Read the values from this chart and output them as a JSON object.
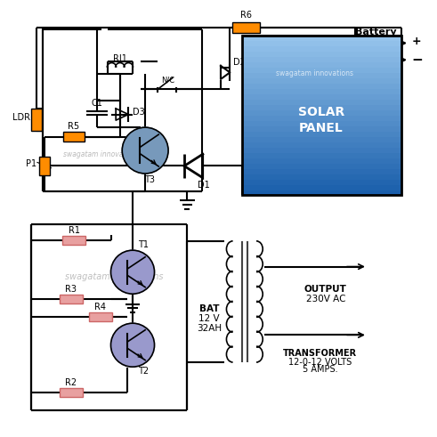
{
  "bg_color": "#ffffff",
  "line_color": "#000000",
  "orange_color": "#FF8C00",
  "pink_resistor_color": "#E8A0A0",
  "blue_transistor_t3": "#7799bb",
  "blue_transistor_t12": "#9999cc",
  "blue_panel_top": "#1a5faa",
  "blue_panel_bottom": "#aaccee",
  "watermark": "swagatam innovations",
  "battery_plus": "+",
  "battery_minus": "−",
  "battery_label": "Battery",
  "r6_label": "R6",
  "ri1_label": "RI1",
  "nc_label": "N/C",
  "c1_label": "C1",
  "d3_label": "D3",
  "ldr_label": "LDR",
  "r5_label": "R5",
  "t3_label": "T3",
  "p1_label": "P1",
  "d1_label": "D1",
  "d2_label": "D2",
  "solar_label": "SOLAR\nPANEL",
  "r1_label": "R1",
  "t1_label": "T1",
  "r3_label": "R3",
  "r4_label": "R4",
  "t2_label": "T2",
  "r2_label": "R2",
  "bat_label": "BAT",
  "bat_spec1": "12 V",
  "bat_spec2": "32AH",
  "output_label": "OUTPUT",
  "output_spec": "230V AC",
  "xfmr_label": "TRANSFORMER",
  "xfmr_spec1": "12-0-12 VOLTS",
  "xfmr_spec2": "5 AMPS."
}
